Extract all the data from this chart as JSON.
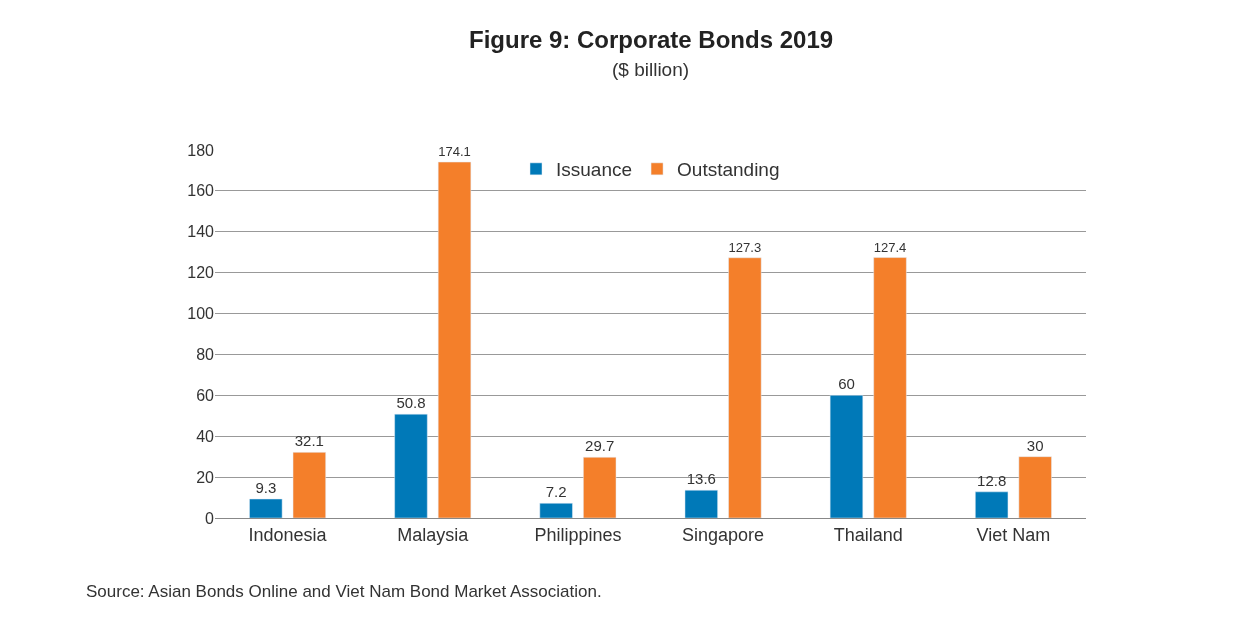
{
  "chart_data": {
    "type": "bar",
    "title": "Figure 9: Corporate Bonds 2019",
    "subtitle": "($ billion)",
    "categories": [
      "Indonesia",
      "Malaysia",
      "Philippines",
      "Singapore",
      "Thailand",
      "Viet Nam"
    ],
    "series": [
      {
        "name": "Issuance",
        "color": "#0079b8",
        "values": [
          9.3,
          50.8,
          7.2,
          13.6,
          60,
          12.8
        ]
      },
      {
        "name": "Outstanding",
        "color": "#f47f2a",
        "values": [
          32.1,
          174.1,
          29.7,
          127.3,
          127.4,
          30
        ]
      }
    ],
    "ylim": [
      0,
      180
    ],
    "yticks": [
      0,
      20,
      40,
      60,
      80,
      100,
      120,
      140,
      160,
      180
    ],
    "grid": "y",
    "legend": "top",
    "data_labels": true,
    "annotations": [
      "Source: Asian Bonds Online and Viet Nam Bond Market Association."
    ]
  }
}
